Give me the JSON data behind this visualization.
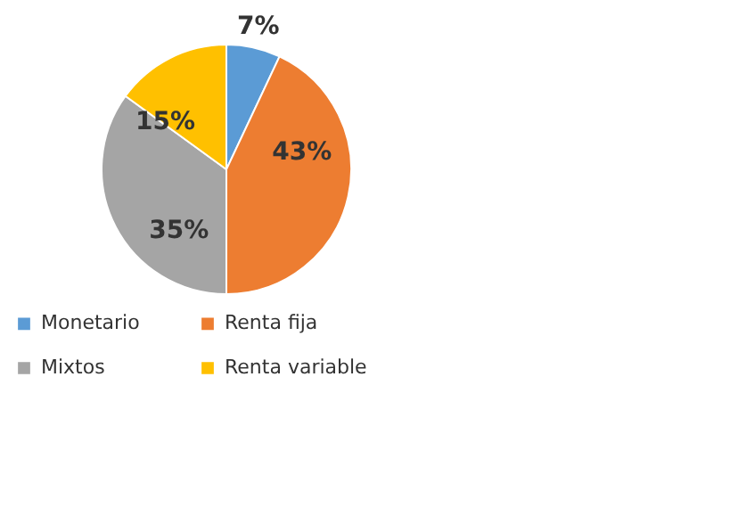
{
  "chart_data": {
    "type": "pie",
    "categories": [
      "Monetario",
      "Renta fija",
      "Mixtos",
      "Renta variable"
    ],
    "values": [
      7,
      43,
      35,
      15
    ],
    "colors": [
      "#5b9bd5",
      "#ed7d31",
      "#a5a5a5",
      "#ffc000"
    ],
    "value_labels": [
      "7%",
      "43%",
      "35%",
      "15%"
    ],
    "legend": "bottom"
  }
}
